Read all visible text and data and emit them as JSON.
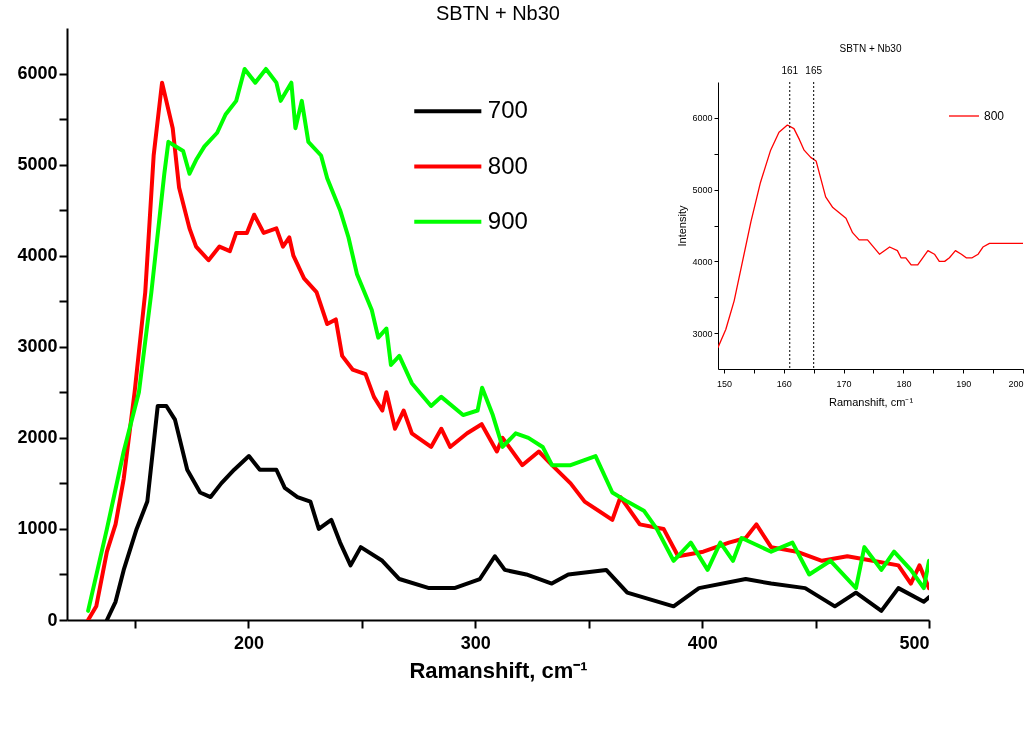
{
  "chart_data": [
    {
      "type": "line",
      "title": "SBTN + Nb30",
      "xlabel": "Ramanshift, cm⁻¹",
      "xlim": [
        120,
        500
      ],
      "ylim": [
        0,
        6500
      ],
      "xticks": [
        {
          "value": 150,
          "label": null
        },
        200,
        {
          "value": 250,
          "label": null
        },
        300,
        {
          "value": 350,
          "label": null
        },
        400,
        {
          "value": 450,
          "label": null
        },
        500
      ],
      "yticks": [
        0,
        {
          "value": 500,
          "label": null
        },
        1000,
        {
          "value": 1500,
          "label": null
        },
        2000,
        {
          "value": 2500,
          "label": null
        },
        3000,
        {
          "value": 3500,
          "label": null
        },
        4000,
        {
          "value": 4500,
          "label": null
        },
        5000,
        {
          "value": 5500,
          "label": null
        },
        6000
      ],
      "legend": "top",
      "grid": false,
      "line_style": "solid",
      "series": [
        {
          "name": "700",
          "color": "#000000",
          "x": [
            137.6,
            141.4,
            145,
            150.7,
            155.4,
            160,
            163.8,
            167.6,
            173,
            178.7,
            183.3,
            188,
            193.7,
            200.2,
            205,
            212.3,
            216,
            221.6,
            227.3,
            231,
            236.5,
            240.4,
            245,
            249.5,
            259,
            266.5,
            279.6,
            290.8,
            302,
            308.6,
            313,
            322.5,
            333.7,
            341,
            357.7,
            367,
            387.4,
            398.6,
            419.2,
            430.4,
            445.4,
            458.5,
            467.8,
            479,
            486.5,
            497.7,
            500
          ],
          "values": [
            0,
            200,
            550,
            1000,
            1300,
            2350,
            2350,
            2200,
            1650,
            1400,
            1350,
            1500,
            1650,
            1800,
            1650,
            1650,
            1450,
            1350,
            1300,
            1000,
            1100,
            850,
            600,
            800,
            650,
            450,
            350,
            350,
            450,
            700,
            550,
            500,
            400,
            500,
            550,
            300,
            150,
            350,
            450,
            400,
            350,
            150,
            300,
            100,
            350,
            200,
            250
          ]
        },
        {
          "name": "800",
          "color": "#ff0000",
          "x": [
            129.3,
            132.9,
            137.6,
            141.4,
            145,
            149.8,
            154.5,
            158.2,
            161.9,
            166.6,
            169.4,
            174,
            176.9,
            182.4,
            187.2,
            191.8,
            194.6,
            199.3,
            202.5,
            206.7,
            212.3,
            215.2,
            218,
            219.8,
            224.5,
            230,
            234.7,
            238.5,
            241.3,
            245.9,
            251.6,
            255.3,
            259,
            260.8,
            264.6,
            268.4,
            272,
            280.5,
            285,
            288.9,
            296.4,
            302.8,
            309.5,
            312,
            320.7,
            328,
            333.8,
            342,
            348.2,
            360.4,
            364,
            372.5,
            383,
            389.4,
            400.5,
            411.8,
            419.2,
            423.9,
            430.4,
            441.7,
            452.8,
            464,
            475.2,
            486.5,
            492,
            495.8,
            500
          ],
          "values": [
            0,
            150,
            750,
            1050,
            1550,
            2500,
            3600,
            5100,
            5900,
            5400,
            4750,
            4300,
            4100,
            3950,
            4100,
            4050,
            4250,
            4250,
            4450,
            4250,
            4300,
            4100,
            4200,
            4000,
            3750,
            3600,
            3250,
            3300,
            2900,
            2750,
            2700,
            2450,
            2300,
            2500,
            2100,
            2300,
            2050,
            1900,
            2100,
            1900,
            2050,
            2150,
            1850,
            2000,
            1700,
            1850,
            1700,
            1500,
            1300,
            1100,
            1350,
            1050,
            1000,
            700,
            750,
            850,
            900,
            1050,
            800,
            750,
            650,
            700,
            650,
            600,
            400,
            600,
            350
          ]
        },
        {
          "name": "900",
          "color": "#00ff00",
          "x": [
            129.3,
            137.6,
            145,
            151.7,
            157.2,
            162.9,
            164.7,
            171.2,
            174,
            176.9,
            180.6,
            186.2,
            189.9,
            194.6,
            198.3,
            203,
            207.7,
            212.3,
            214.2,
            218.9,
            220.7,
            223.5,
            226.4,
            232,
            234.7,
            240.4,
            244.1,
            247.8,
            254.4,
            257.2,
            260.8,
            262.8,
            266.5,
            272,
            280.5,
            285,
            294.6,
            301,
            303,
            307.7,
            312,
            317.8,
            323.4,
            329.7,
            333.8,
            342,
            353,
            360.4,
            367,
            374.3,
            380,
            387.4,
            395,
            402.4,
            408,
            413.6,
            417.4,
            430.4,
            439.8,
            447.2,
            456.6,
            467.8,
            471.5,
            479,
            484.6,
            492,
            497.7,
            500
          ],
          "values": [
            100,
            1000,
            1850,
            2500,
            3600,
            4900,
            5250,
            5150,
            4900,
            5050,
            5200,
            5350,
            5550,
            5700,
            6050,
            5900,
            6050,
            5900,
            5700,
            5900,
            5400,
            5700,
            5250,
            5100,
            4850,
            4500,
            4200,
            3800,
            3400,
            3100,
            3200,
            2800,
            2900,
            2600,
            2350,
            2450,
            2250,
            2300,
            2550,
            2250,
            1900,
            2050,
            2000,
            1900,
            1700,
            1700,
            1800,
            1400,
            1300,
            1200,
            1000,
            650,
            850,
            550,
            850,
            650,
            900,
            750,
            850,
            500,
            650,
            350,
            800,
            550,
            750,
            550,
            350,
            650
          ]
        }
      ]
    },
    {
      "type": "line",
      "title": "SBTN + Nb30",
      "xlabel": "Ramanshift, cm⁻¹",
      "ylabel": "Intensity",
      "xlim": [
        149,
        200
      ],
      "ylim": [
        2500,
        6500
      ],
      "xticks": [
        150,
        {
          "value": 155,
          "label": null
        },
        160,
        {
          "value": 165,
          "label": null
        },
        170,
        {
          "value": 175,
          "label": null
        },
        180,
        {
          "value": 185,
          "label": null
        },
        190,
        {
          "value": 195,
          "label": null
        },
        200
      ],
      "yticks": [
        3000,
        {
          "value": 3500,
          "label": null
        },
        4000,
        {
          "value": 4500,
          "label": null
        },
        5000,
        {
          "value": 5500,
          "label": null
        },
        6000
      ],
      "legend": "top right",
      "grid": false,
      "line_style": "solid",
      "ref_lines": [
        {
          "axis": "x",
          "value": 161,
          "label": "161",
          "line_style": "dotted",
          "color": "#000000"
        },
        {
          "axis": "x",
          "value": 165,
          "label": "165",
          "line_style": "dotted",
          "color": "#000000"
        }
      ],
      "series": [
        {
          "name": "800",
          "color": "#ff0000",
          "x": [
            149,
            150.3,
            151.7,
            153.1,
            154.5,
            156.1,
            157.8,
            159.2,
            160.6,
            161.7,
            162.6,
            163.4,
            164.5,
            165.4,
            166.2,
            167,
            168.2,
            170.4,
            171.5,
            172.6,
            174,
            176,
            177.7,
            179,
            179.6,
            180.4,
            181.3,
            182.4,
            184.1,
            185.2,
            186,
            186.9,
            187.7,
            188.7,
            189.7,
            190.5,
            191.5,
            192.5,
            193.3,
            194.4,
            196.1,
            196.6,
            197.5,
            198.3,
            200
          ],
          "values": [
            2800,
            3050,
            3450,
            4000,
            4550,
            5100,
            5550,
            5800,
            5900,
            5850,
            5700,
            5550,
            5450,
            5400,
            5150,
            4900,
            4750,
            4600,
            4400,
            4300,
            4300,
            4100,
            4200,
            4150,
            4050,
            4050,
            3950,
            3950,
            4150,
            4100,
            4000,
            4000,
            4050,
            4150,
            4100,
            4050,
            4050,
            4100,
            4200,
            4250,
            4250,
            4250,
            4250,
            4250,
            4250
          ]
        }
      ]
    }
  ]
}
